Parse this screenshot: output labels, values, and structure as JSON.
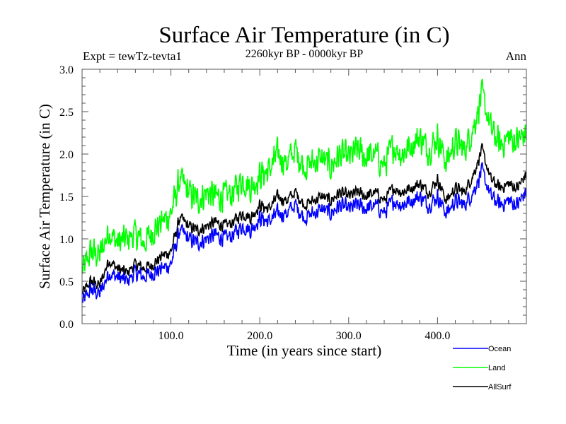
{
  "chart_data": {
    "type": "line",
    "title": "Surface Air Temperature (in C)",
    "subtitle": "2260kyr BP - 0000kyr BP",
    "left_annotation": "Expt = tewTz-tevta1",
    "right_annotation": "Ann",
    "xlabel": "Time (in years since start)",
    "ylabel": "Surface Air Temperature (in C)",
    "xlim": [
      0,
      500
    ],
    "ylim": [
      0.0,
      3.0
    ],
    "xticks": [
      {
        "value": 100,
        "label": "100.0"
      },
      {
        "value": 200,
        "label": "200.0"
      },
      {
        "value": 300,
        "label": "300.0"
      },
      {
        "value": 400,
        "label": "400.0"
      }
    ],
    "x_minor_step": 20,
    "yticks": [
      {
        "value": 0.0,
        "label": "0.0"
      },
      {
        "value": 0.5,
        "label": "0.5"
      },
      {
        "value": 1.0,
        "label": "1.0"
      },
      {
        "value": 1.5,
        "label": "1.5"
      },
      {
        "value": 2.0,
        "label": "2.0"
      },
      {
        "value": 2.5,
        "label": "2.5"
      },
      {
        "value": 3.0,
        "label": "3.0"
      }
    ],
    "y_minor_step": 0.1,
    "grid": false,
    "legend_position": "bottom-right-outside",
    "series": [
      {
        "name": "Ocean",
        "color": "#0000ff",
        "x": [
          0,
          10,
          20,
          30,
          40,
          50,
          60,
          70,
          80,
          90,
          100,
          110,
          120,
          130,
          140,
          150,
          160,
          170,
          180,
          190,
          200,
          210,
          220,
          230,
          240,
          250,
          260,
          270,
          280,
          290,
          300,
          310,
          320,
          330,
          340,
          350,
          360,
          370,
          380,
          390,
          400,
          410,
          420,
          430,
          440,
          450,
          460,
          470,
          480,
          490,
          499
        ],
        "values": [
          0.25,
          0.4,
          0.35,
          0.6,
          0.55,
          0.5,
          0.6,
          0.55,
          0.6,
          0.65,
          0.7,
          1.1,
          1.0,
          0.95,
          1.0,
          1.05,
          1.0,
          1.05,
          1.15,
          1.1,
          1.25,
          1.2,
          1.3,
          1.3,
          1.4,
          1.25,
          1.3,
          1.35,
          1.3,
          1.4,
          1.35,
          1.4,
          1.35,
          1.4,
          1.3,
          1.45,
          1.4,
          1.45,
          1.5,
          1.4,
          1.5,
          1.3,
          1.45,
          1.4,
          1.55,
          1.8,
          1.5,
          1.4,
          1.45,
          1.4,
          1.55
        ]
      },
      {
        "name": "Land",
        "color": "#00ff00",
        "x": [
          0,
          10,
          20,
          30,
          40,
          50,
          60,
          70,
          80,
          90,
          100,
          110,
          120,
          130,
          140,
          150,
          160,
          170,
          180,
          190,
          200,
          210,
          220,
          230,
          240,
          250,
          260,
          270,
          280,
          290,
          300,
          310,
          320,
          330,
          340,
          350,
          360,
          370,
          380,
          390,
          400,
          410,
          420,
          430,
          440,
          450,
          460,
          470,
          480,
          490,
          499
        ],
        "values": [
          0.6,
          0.85,
          0.8,
          1.1,
          0.95,
          1.0,
          1.05,
          0.95,
          1.1,
          1.2,
          1.3,
          1.7,
          1.55,
          1.45,
          1.55,
          1.5,
          1.5,
          1.55,
          1.7,
          1.6,
          1.75,
          1.8,
          2.0,
          1.9,
          2.05,
          1.85,
          1.9,
          1.95,
          1.85,
          2.0,
          1.95,
          2.05,
          1.95,
          2.0,
          1.85,
          2.1,
          2.0,
          2.1,
          2.2,
          2.05,
          2.2,
          1.9,
          2.15,
          2.05,
          2.3,
          2.7,
          2.3,
          2.1,
          2.2,
          2.15,
          2.25
        ]
      },
      {
        "name": "AllSurf",
        "color": "#000000",
        "x": [
          0,
          10,
          20,
          30,
          40,
          50,
          60,
          70,
          80,
          90,
          100,
          110,
          120,
          130,
          140,
          150,
          160,
          170,
          180,
          190,
          200,
          210,
          220,
          230,
          240,
          250,
          260,
          270,
          280,
          290,
          300,
          310,
          320,
          330,
          340,
          350,
          360,
          370,
          380,
          390,
          400,
          410,
          420,
          430,
          440,
          450,
          460,
          470,
          480,
          490,
          499
        ],
        "values": [
          0.35,
          0.5,
          0.45,
          0.75,
          0.65,
          0.6,
          0.7,
          0.65,
          0.7,
          0.8,
          0.85,
          1.25,
          1.15,
          1.1,
          1.15,
          1.2,
          1.15,
          1.2,
          1.3,
          1.25,
          1.4,
          1.35,
          1.5,
          1.45,
          1.55,
          1.4,
          1.45,
          1.5,
          1.45,
          1.55,
          1.5,
          1.55,
          1.5,
          1.55,
          1.45,
          1.6,
          1.55,
          1.6,
          1.65,
          1.55,
          1.7,
          1.45,
          1.6,
          1.55,
          1.75,
          2.05,
          1.7,
          1.6,
          1.65,
          1.6,
          1.75
        ]
      }
    ]
  }
}
